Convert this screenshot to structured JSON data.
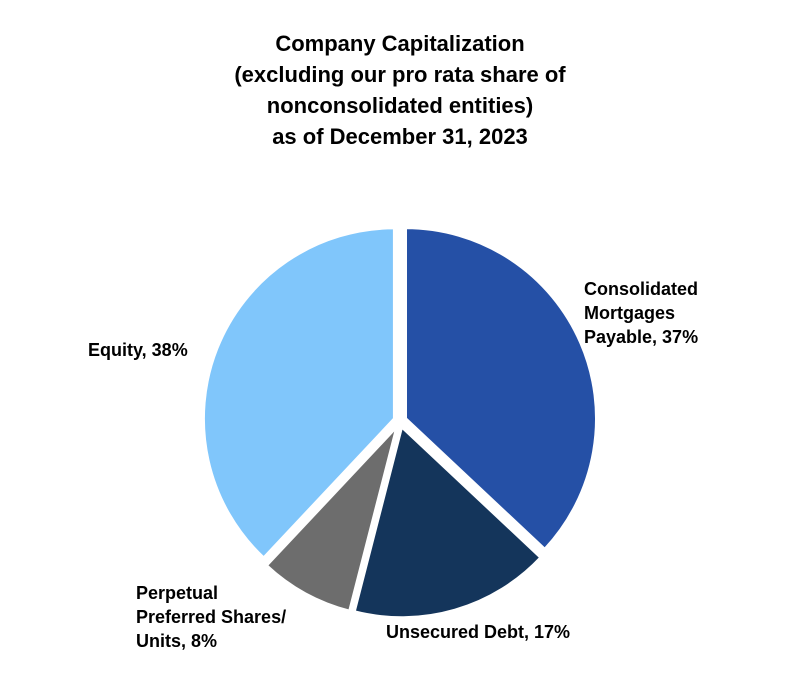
{
  "chart_data": {
    "type": "pie",
    "title_lines": [
      "Company Capitalization",
      "(excluding our pro rata share of",
      "nonconsolidated entities)",
      "as of December 31, 2023"
    ],
    "slices": [
      {
        "label": "Consolidated Mortgages Payable",
        "value": 37,
        "color": "#2550a6",
        "label_lines": [
          "Consolidated",
          "Mortgages",
          "Payable, 37%"
        ]
      },
      {
        "label": "Unsecured Debt",
        "value": 17,
        "color": "#14355b",
        "label_lines": [
          "Unsecured Debt, 17%"
        ]
      },
      {
        "label": "Perpetual Preferred Shares/Units",
        "value": 8,
        "color": "#6d6d6d",
        "label_lines": [
          "Perpetual",
          "Preferred Shares/",
          "Units, 8%"
        ]
      },
      {
        "label": "Equity",
        "value": 38,
        "color": "#80c6fb",
        "label_lines": [
          "Equity, 38%"
        ]
      }
    ],
    "legend": "none"
  }
}
